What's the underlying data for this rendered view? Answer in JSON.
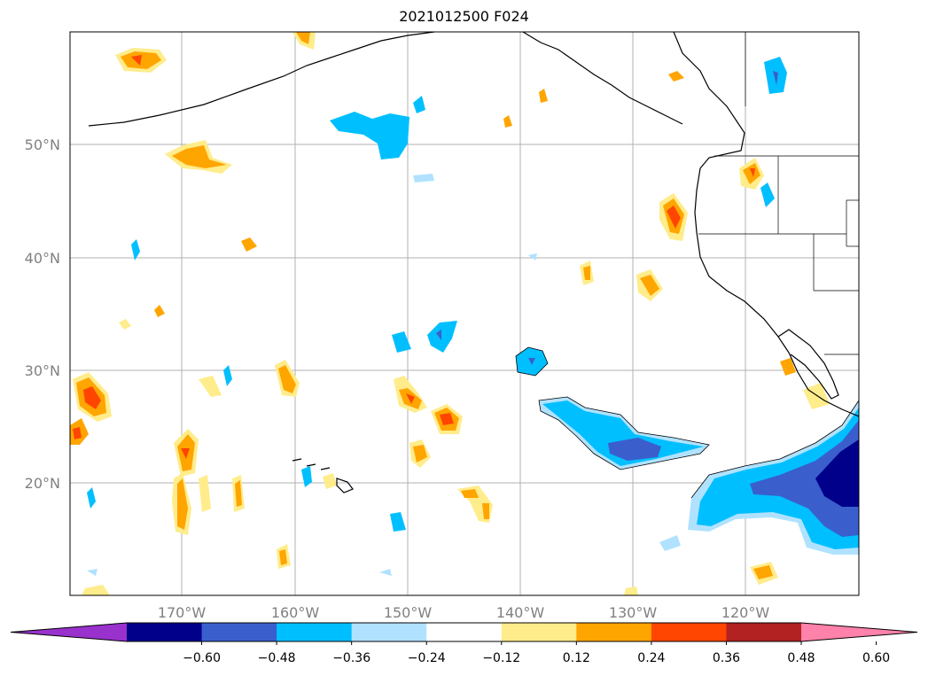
{
  "title": "2021012500 F024",
  "lat_labels": [
    "50°N",
    "40°N",
    "30°N",
    "20°N"
  ],
  "lon_labels": [
    "170°W",
    "160°W",
    "150°W",
    "140°W",
    "130°W",
    "120°W"
  ],
  "colorbar": {
    "ticks": [
      "−0.60",
      "−0.48",
      "−0.36",
      "−0.24",
      "−0.12",
      "0.12",
      "0.24",
      "0.36",
      "0.48",
      "0.60"
    ],
    "colors": [
      "#9932cc",
      "#00008b",
      "#3a5fcd",
      "#00bfff",
      "#b0e2ff",
      "#ffffff",
      "#ffec8b",
      "#ffa500",
      "#ff4500",
      "#b22222",
      "#ff82ab"
    ]
  },
  "colors": {
    "pos1": "#ffec8b",
    "pos2": "#ffa500",
    "pos3": "#ff4500",
    "neg1": "#b0e2ff",
    "neg2": "#00bfff",
    "neg3": "#3a5fcd",
    "neg4": "#00008b"
  }
}
